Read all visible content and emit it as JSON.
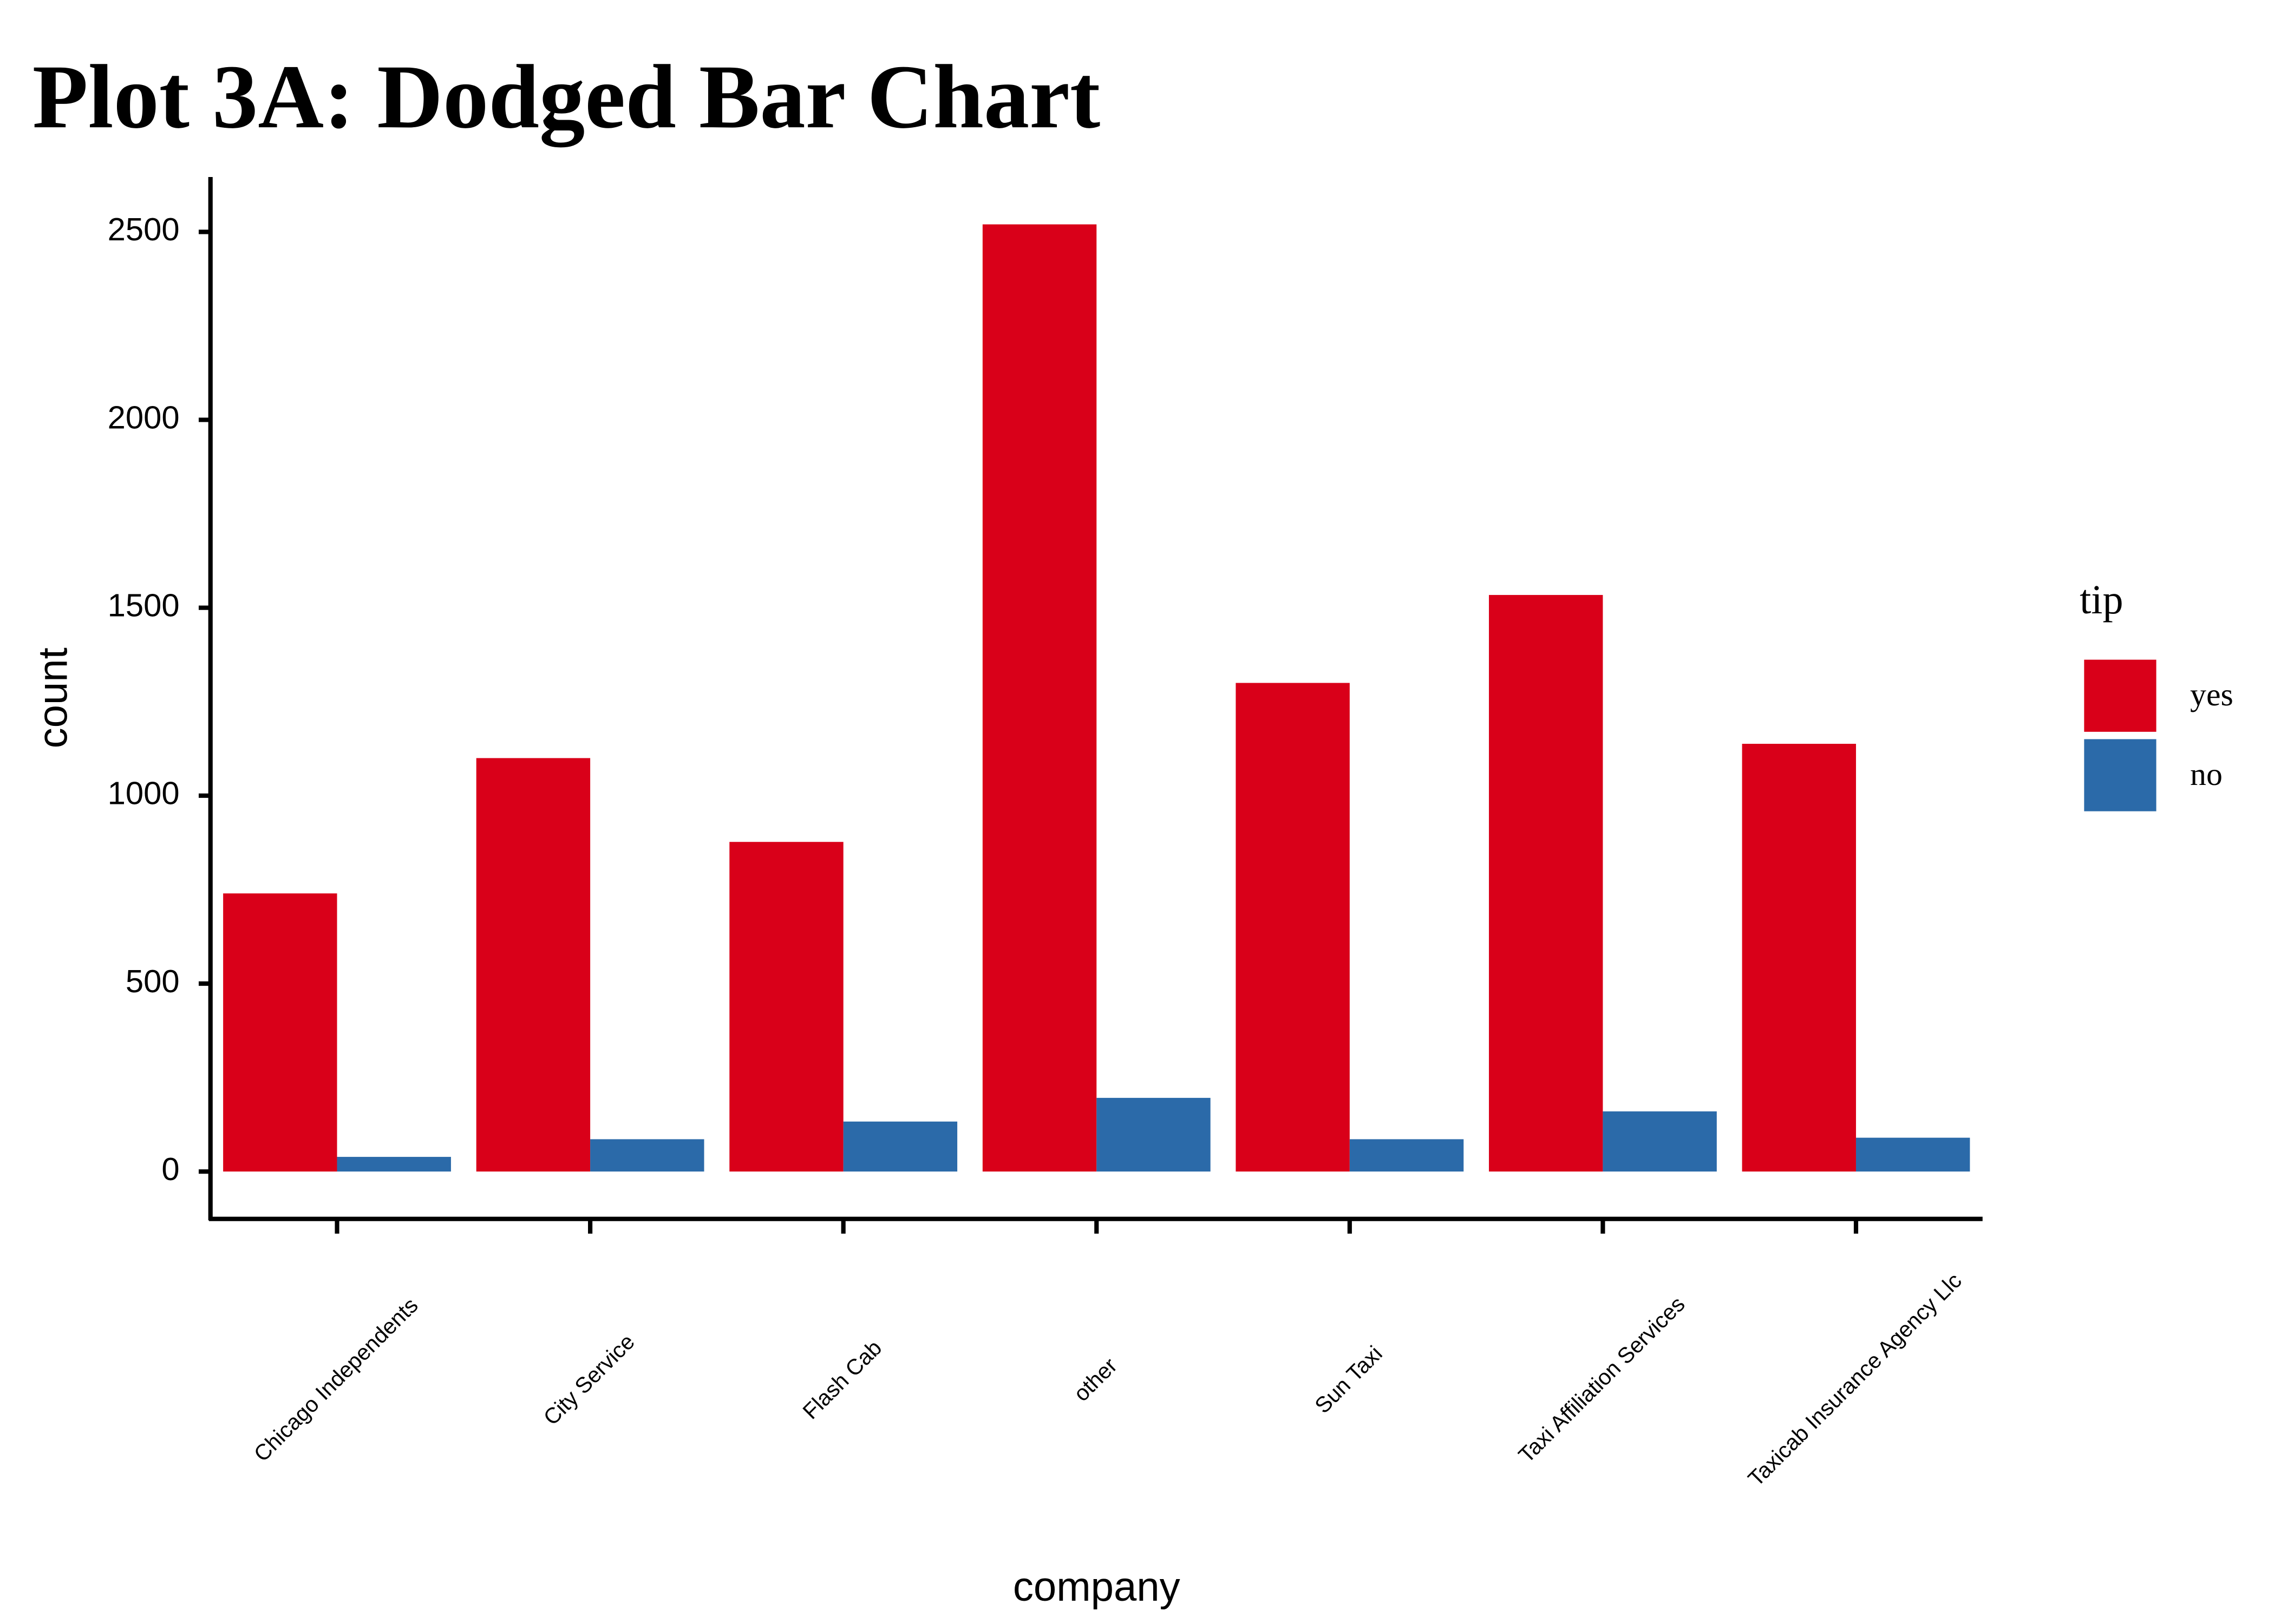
{
  "chart_data": {
    "type": "bar",
    "title": "Plot 3A: Dodged Bar Chart",
    "x_label": "company",
    "y_label": "count",
    "legend_title": "tip",
    "categories": [
      "Chicago Independents",
      "City Service",
      "Flash Cab",
      "other",
      "Sun Taxi",
      "Taxi Affiliation Services",
      "Taxicab Insurance Agency Llc"
    ],
    "series": [
      {
        "name": "yes",
        "color": "#d90019",
        "values": [
          740,
          1100,
          877,
          2520,
          1300,
          1534,
          1138
        ]
      },
      {
        "name": "no",
        "color": "#2b6aa9",
        "values": [
          39,
          86,
          133,
          196,
          86,
          160,
          90
        ]
      }
    ],
    "ylim": [
      -126,
      2646
    ],
    "yticks": [
      0,
      500,
      1000,
      1500,
      2000,
      2500
    ],
    "grid": false
  }
}
